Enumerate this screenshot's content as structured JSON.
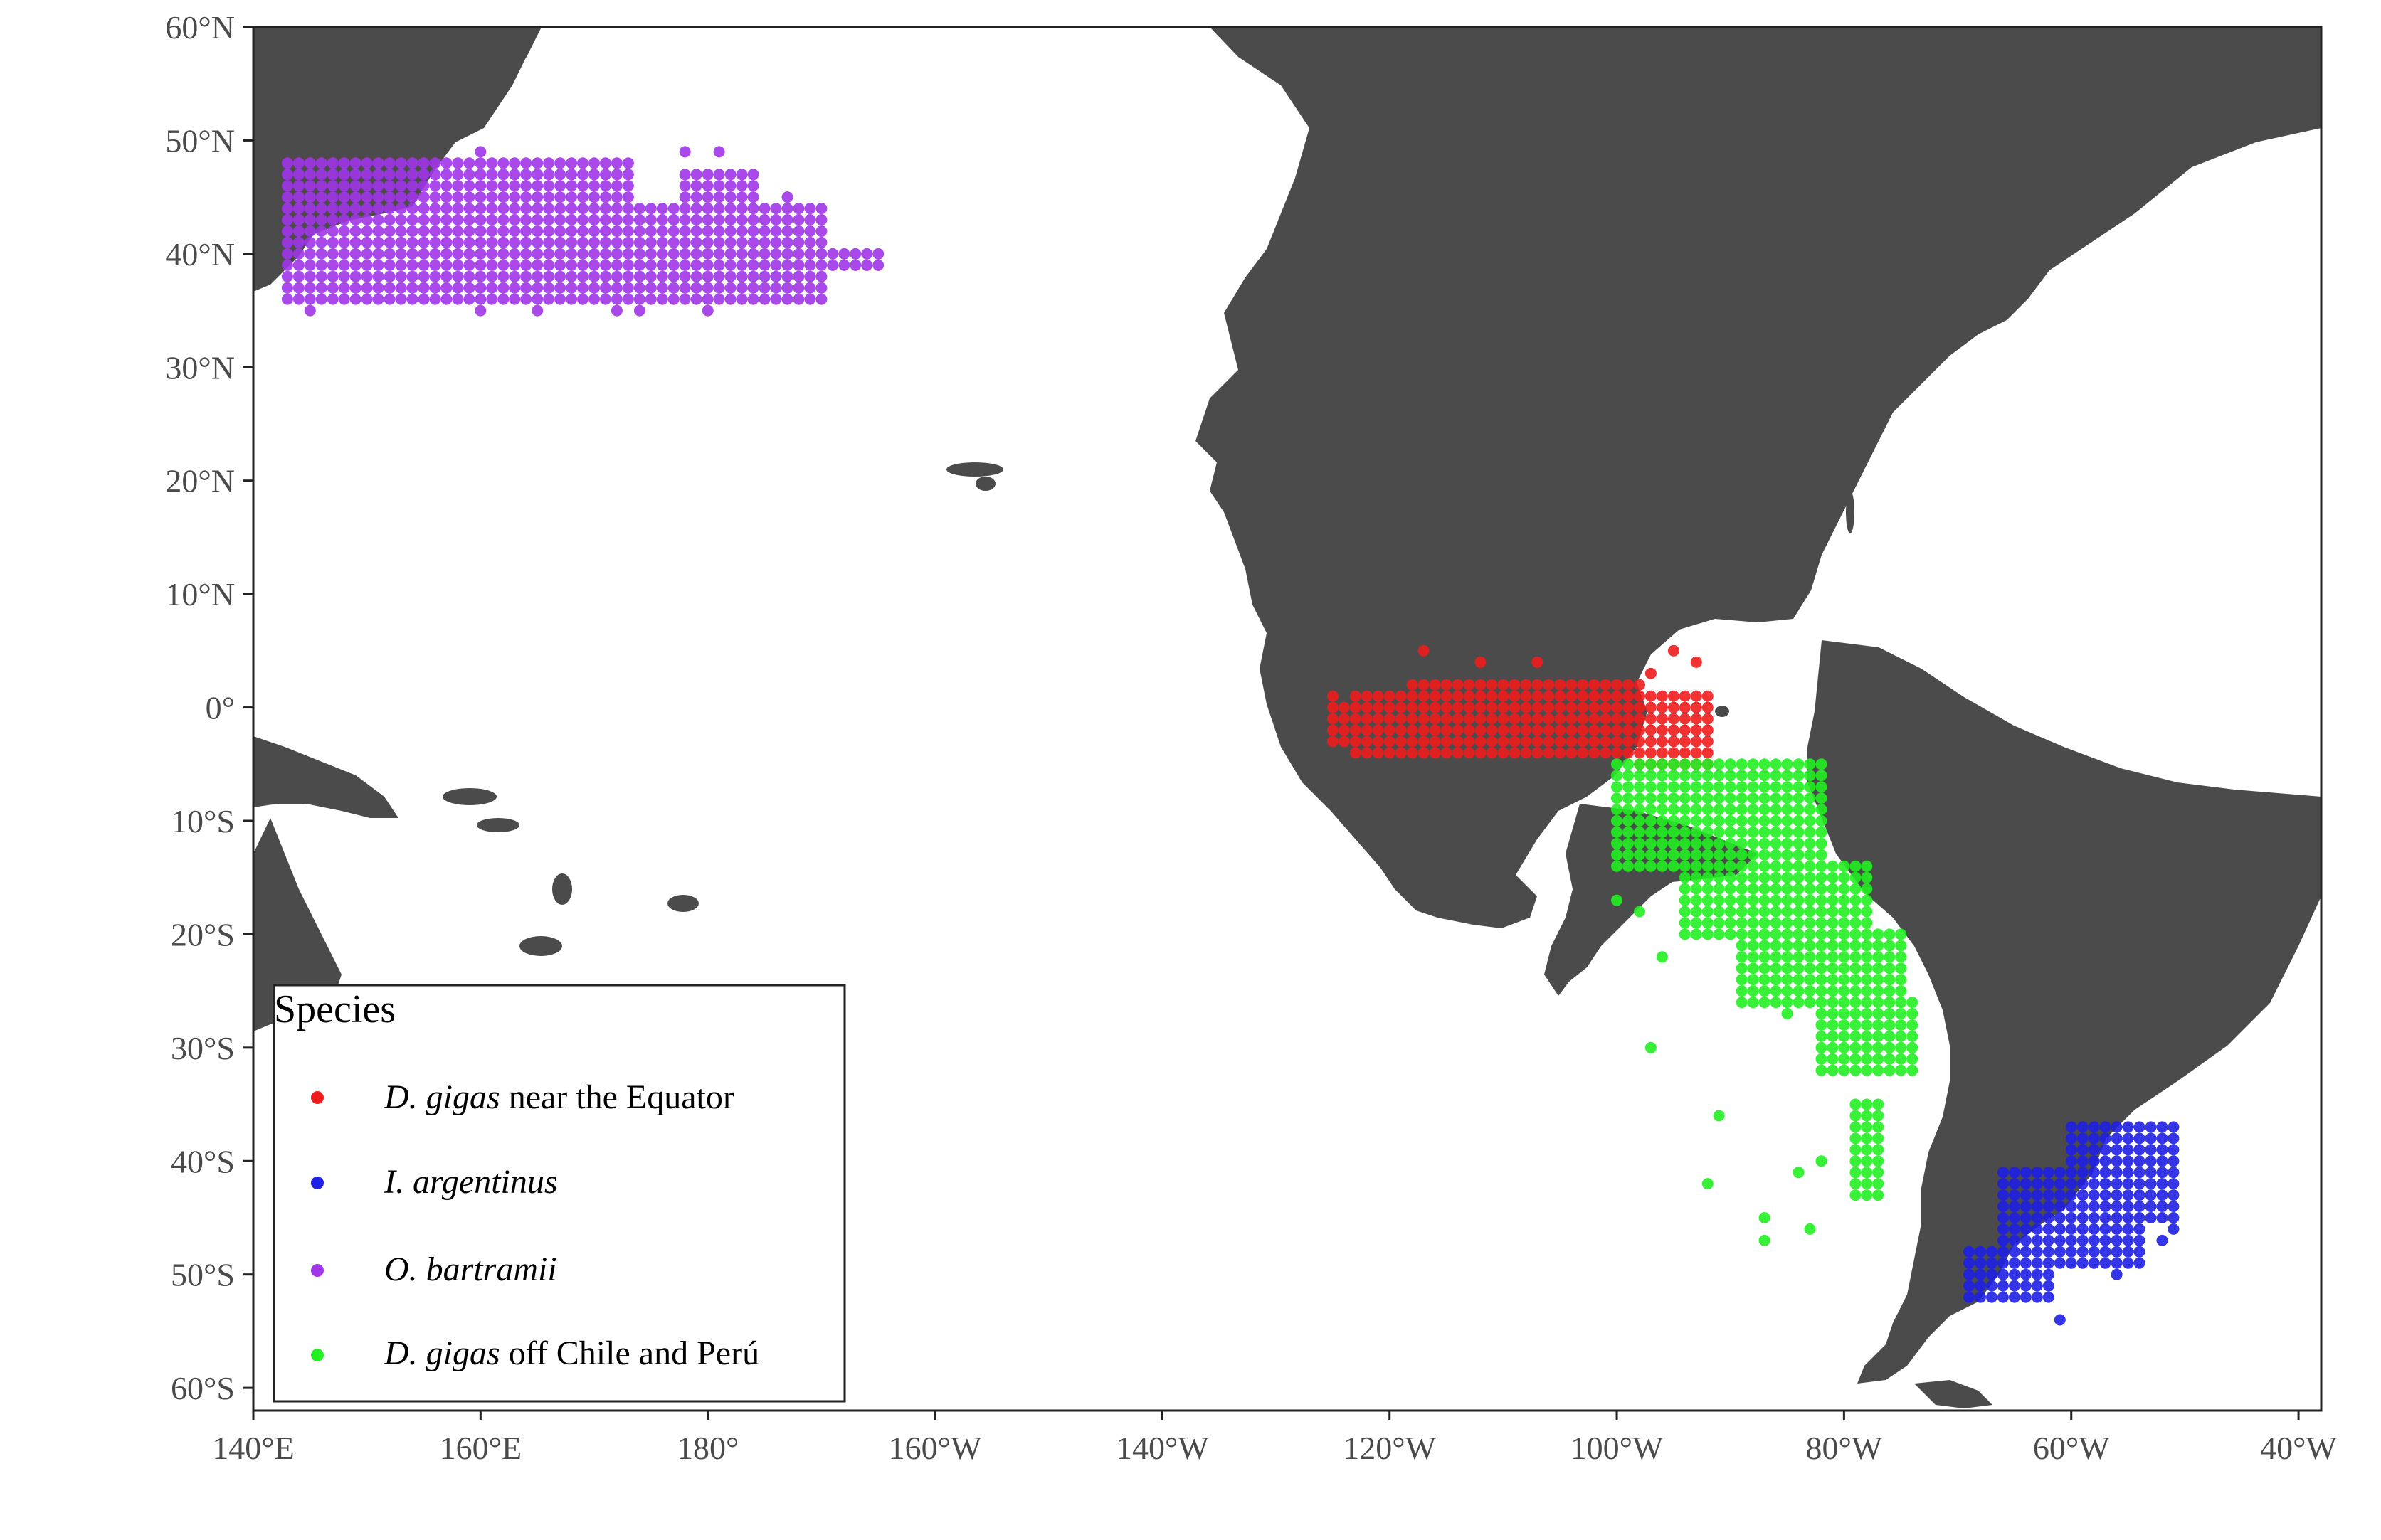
{
  "chart_data": {
    "type": "map-scatter",
    "projection": "equirectangular",
    "xlim": [
      140,
      322
    ],
    "ylim": [
      -62,
      60
    ],
    "x_ticks": [
      {
        "value": 140,
        "label": "140°E"
      },
      {
        "value": 160,
        "label": "160°E"
      },
      {
        "value": 180,
        "label": "180°"
      },
      {
        "value": 200,
        "label": "160°W"
      },
      {
        "value": 220,
        "label": "140°W"
      },
      {
        "value": 240,
        "label": "120°W"
      },
      {
        "value": 260,
        "label": "100°W"
      },
      {
        "value": 280,
        "label": "80°W"
      },
      {
        "value": 300,
        "label": "60°W"
      },
      {
        "value": 320,
        "label": "40°W"
      }
    ],
    "y_ticks": [
      {
        "value": 60,
        "label": "60°N"
      },
      {
        "value": 50,
        "label": "50°N"
      },
      {
        "value": 40,
        "label": "40°N"
      },
      {
        "value": 30,
        "label": "30°N"
      },
      {
        "value": 20,
        "label": "20°N"
      },
      {
        "value": 10,
        "label": "10°N"
      },
      {
        "value": 0,
        "label": "0°"
      },
      {
        "value": -10,
        "label": "10°S"
      },
      {
        "value": -20,
        "label": "20°S"
      },
      {
        "value": -30,
        "label": "30°S"
      },
      {
        "value": -40,
        "label": "40°S"
      },
      {
        "value": -50,
        "label": "50°S"
      },
      {
        "value": -60,
        "label": "60°S"
      }
    ],
    "land_color": "#4b4b4b",
    "legend": {
      "title": "Species",
      "position": "bottom-left",
      "entries": [
        {
          "italic": "D. gigas",
          "rest": " near the Equator",
          "color": "#ee1c1c"
        },
        {
          "italic": "I. argentinus",
          "rest": "",
          "color": "#1f1fe6"
        },
        {
          "italic": "O. bartramii",
          "rest": "",
          "color": "#a035e8"
        },
        {
          "italic": "D. gigas",
          "rest": " off Chile and Perú",
          "color": "#22ee22"
        }
      ]
    },
    "series": [
      {
        "color": "#a035e8",
        "regions": [
          {
            "lon": [
              143,
              170
            ],
            "lat": [
              36,
              48
            ]
          },
          {
            "lon": [
              170,
              190
            ],
            "lat": [
              36,
              44
            ]
          },
          {
            "lon": [
              178,
              184
            ],
            "lat": [
              44,
              47
            ]
          },
          {
            "lon": [
              166,
              173
            ],
            "lat": [
              44,
              48
            ]
          },
          {
            "lon": [
              190,
              195
            ],
            "lat": [
              39,
              40
            ]
          }
        ],
        "extra_points": [
          [
            160,
            49
          ],
          [
            178,
            49
          ],
          [
            181,
            49
          ],
          [
            184,
            45
          ],
          [
            187,
            45
          ],
          [
            145,
            35
          ],
          [
            160,
            35
          ],
          [
            165,
            35
          ],
          [
            172,
            35
          ],
          [
            174,
            35
          ],
          [
            180,
            35
          ]
        ]
      },
      {
        "color": "#ee1c1c",
        "regions": [
          {
            "lon": [
              237,
              268
            ],
            "lat": [
              -4,
              1
            ]
          },
          {
            "lon": [
              242,
              262
            ],
            "lat": [
              1,
              2
            ]
          },
          {
            "lon": [
              235,
              244
            ],
            "lat": [
              -3,
              0
            ]
          },
          {
            "lon": [
              262,
              268
            ],
            "lat": [
              -5,
              -4
            ]
          }
        ],
        "extra_points": [
          [
            243,
            5
          ],
          [
            248,
            4
          ],
          [
            253,
            4
          ],
          [
            265,
            5
          ],
          [
            267,
            4
          ],
          [
            263,
            3
          ],
          [
            235,
            1
          ],
          [
            239,
            -3
          ]
        ]
      },
      {
        "color": "#22ee22",
        "regions": [
          {
            "lon": [
              260,
              278
            ],
            "lat": [
              -14,
              -5
            ]
          },
          {
            "lon": [
              266,
              282
            ],
            "lat": [
              -20,
              -14
            ]
          },
          {
            "lon": [
              271,
              285
            ],
            "lat": [
              -26,
              -20
            ]
          },
          {
            "lon": [
              278,
              286
            ],
            "lat": [
              -32,
              -26
            ]
          },
          {
            "lon": [
              281,
              283
            ],
            "lat": [
              -43,
              -35
            ]
          }
        ],
        "extra_points": [
          [
            260,
            -17
          ],
          [
            262,
            -18
          ],
          [
            264,
            -22
          ],
          [
            263,
            -30
          ],
          [
            269,
            -36
          ],
          [
            268,
            -42
          ],
          [
            273,
            -45
          ],
          [
            273,
            -47
          ],
          [
            277,
            -46
          ],
          [
            276,
            -41
          ],
          [
            278,
            -40
          ],
          [
            275,
            -27
          ],
          [
            274,
            -25
          ]
        ]
      },
      {
        "color": "#1f1fe6",
        "regions": [
          {
            "lon": [
              294,
              306
            ],
            "lat": [
              -49,
              -41
            ]
          },
          {
            "lon": [
              300,
              309
            ],
            "lat": [
              -45,
              -37
            ]
          },
          {
            "lon": [
              291,
              298
            ],
            "lat": [
              -52,
              -48
            ]
          }
        ],
        "extra_points": [
          [
            299,
            -54
          ],
          [
            304,
            -50
          ],
          [
            308,
            -47
          ],
          [
            309,
            -46
          ],
          [
            308,
            -38
          ],
          [
            292,
            -51
          ]
        ]
      }
    ]
  }
}
